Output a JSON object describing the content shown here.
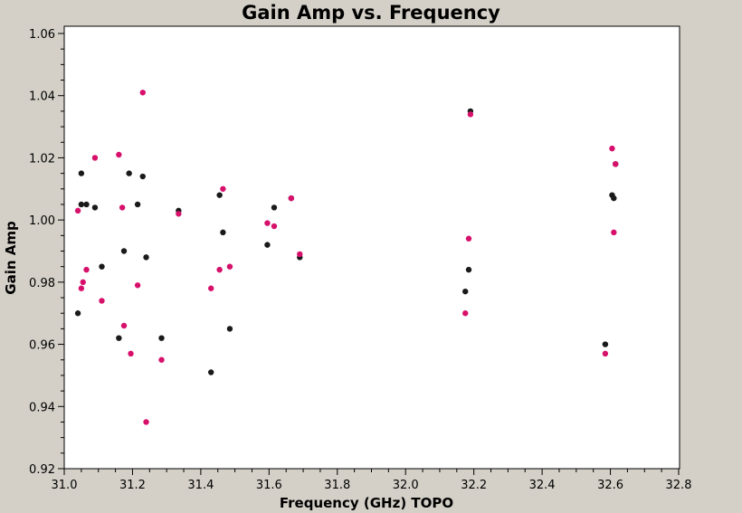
{
  "chart_data": {
    "type": "scatter",
    "title": "Gain Amp vs. Frequency",
    "xlabel": "Frequency (GHz) TOPO",
    "ylabel": "Gain Amp",
    "xlim": [
      31.0,
      32.8
    ],
    "ylim": [
      0.92,
      1.06
    ],
    "xticks": [
      "31.0",
      "31.2",
      "31.4",
      "31.6",
      "31.8",
      "32.0",
      "32.2",
      "32.4",
      "32.6",
      "32.8"
    ],
    "yticks": [
      "0.92",
      "0.94",
      "0.96",
      "0.98",
      "1.00",
      "1.02",
      "1.04",
      "1.06"
    ],
    "grid": false,
    "series": [
      {
        "color": "#1a1a1a",
        "points": [
          [
            31.04,
            0.97
          ],
          [
            31.05,
            1.015
          ],
          [
            31.05,
            1.005
          ],
          [
            31.065,
            1.005
          ],
          [
            31.09,
            1.004
          ],
          [
            31.11,
            0.985
          ],
          [
            31.16,
            0.962
          ],
          [
            31.175,
            0.99
          ],
          [
            31.19,
            1.015
          ],
          [
            31.215,
            1.005
          ],
          [
            31.23,
            1.014
          ],
          [
            31.24,
            0.988
          ],
          [
            31.285,
            0.962
          ],
          [
            31.335,
            1.003
          ],
          [
            31.43,
            0.951
          ],
          [
            31.455,
            1.008
          ],
          [
            31.465,
            0.996
          ],
          [
            31.485,
            0.965
          ],
          [
            31.595,
            0.992
          ],
          [
            31.615,
            1.004
          ],
          [
            31.665,
            1.007
          ],
          [
            31.69,
            0.988
          ],
          [
            32.175,
            0.977
          ],
          [
            32.185,
            0.984
          ],
          [
            32.19,
            1.035
          ],
          [
            32.585,
            0.96
          ],
          [
            32.605,
            1.008
          ],
          [
            32.61,
            1.007
          ],
          [
            32.615,
            1.018
          ]
        ]
      },
      {
        "color": "#d6106b",
        "points": [
          [
            31.04,
            1.003
          ],
          [
            31.05,
            0.978
          ],
          [
            31.055,
            0.98
          ],
          [
            31.065,
            0.984
          ],
          [
            31.09,
            1.02
          ],
          [
            31.11,
            0.974
          ],
          [
            31.16,
            1.021
          ],
          [
            31.17,
            1.004
          ],
          [
            31.175,
            0.966
          ],
          [
            31.195,
            0.957
          ],
          [
            31.215,
            0.979
          ],
          [
            31.23,
            1.041
          ],
          [
            31.24,
            0.935
          ],
          [
            31.285,
            0.955
          ],
          [
            31.335,
            1.002
          ],
          [
            31.43,
            0.978
          ],
          [
            31.455,
            0.984
          ],
          [
            31.465,
            1.01
          ],
          [
            31.485,
            0.985
          ],
          [
            31.595,
            0.999
          ],
          [
            31.615,
            0.998
          ],
          [
            31.665,
            1.007
          ],
          [
            31.69,
            0.989
          ],
          [
            32.175,
            0.97
          ],
          [
            32.185,
            0.994
          ],
          [
            32.19,
            1.034
          ],
          [
            32.585,
            0.957
          ],
          [
            32.605,
            1.023
          ],
          [
            32.61,
            0.996
          ],
          [
            32.615,
            1.018
          ]
        ]
      }
    ]
  }
}
